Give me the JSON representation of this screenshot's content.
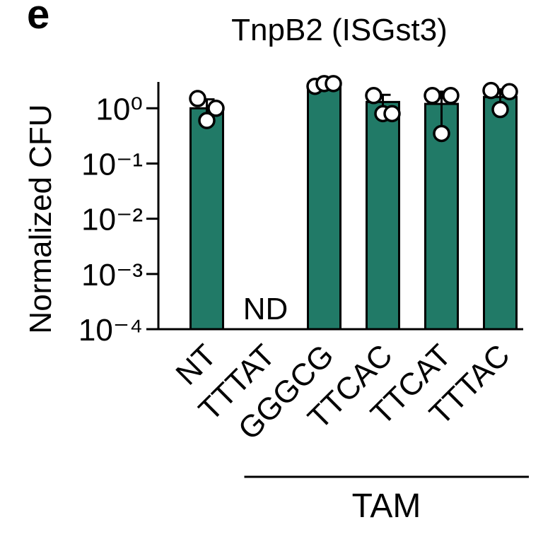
{
  "panel_label": "e",
  "chart_data": {
    "type": "bar",
    "title": "TnpB2 (ISGst3)",
    "ylabel": "Normalized CFU",
    "categories": [
      "NT",
      "TTTAT",
      "GGGCG",
      "TTCAC",
      "TTCAT",
      "TTTAC"
    ],
    "values": [
      1.0,
      null,
      2.7,
      1.3,
      1.2,
      1.6
    ],
    "errors": [
      0.45,
      null,
      0.25,
      0.45,
      0.8,
      0.6
    ],
    "points": [
      [
        1.5,
        0.6,
        1.0
      ],
      null,
      [
        2.5,
        2.8,
        2.8
      ],
      [
        1.7,
        0.8,
        0.8
      ],
      [
        1.7,
        0.35,
        1.7
      ],
      [
        2.1,
        0.95,
        2.0
      ]
    ],
    "color": "#217a67",
    "log_y": true,
    "ylim": [
      0.0001,
      3
    ],
    "yticks": [
      {
        "value": 0.0001,
        "label": "10⁻⁴"
      },
      {
        "value": 0.001,
        "label": "10⁻³"
      },
      {
        "value": 0.01,
        "label": "10⁻²"
      },
      {
        "value": 0.1,
        "label": "10⁻¹"
      },
      {
        "value": 1,
        "label": "10⁰"
      }
    ],
    "annotations": [
      {
        "category": 1,
        "text": "ND"
      }
    ],
    "group": {
      "label": "TAM",
      "from": 1,
      "to": 5
    }
  }
}
